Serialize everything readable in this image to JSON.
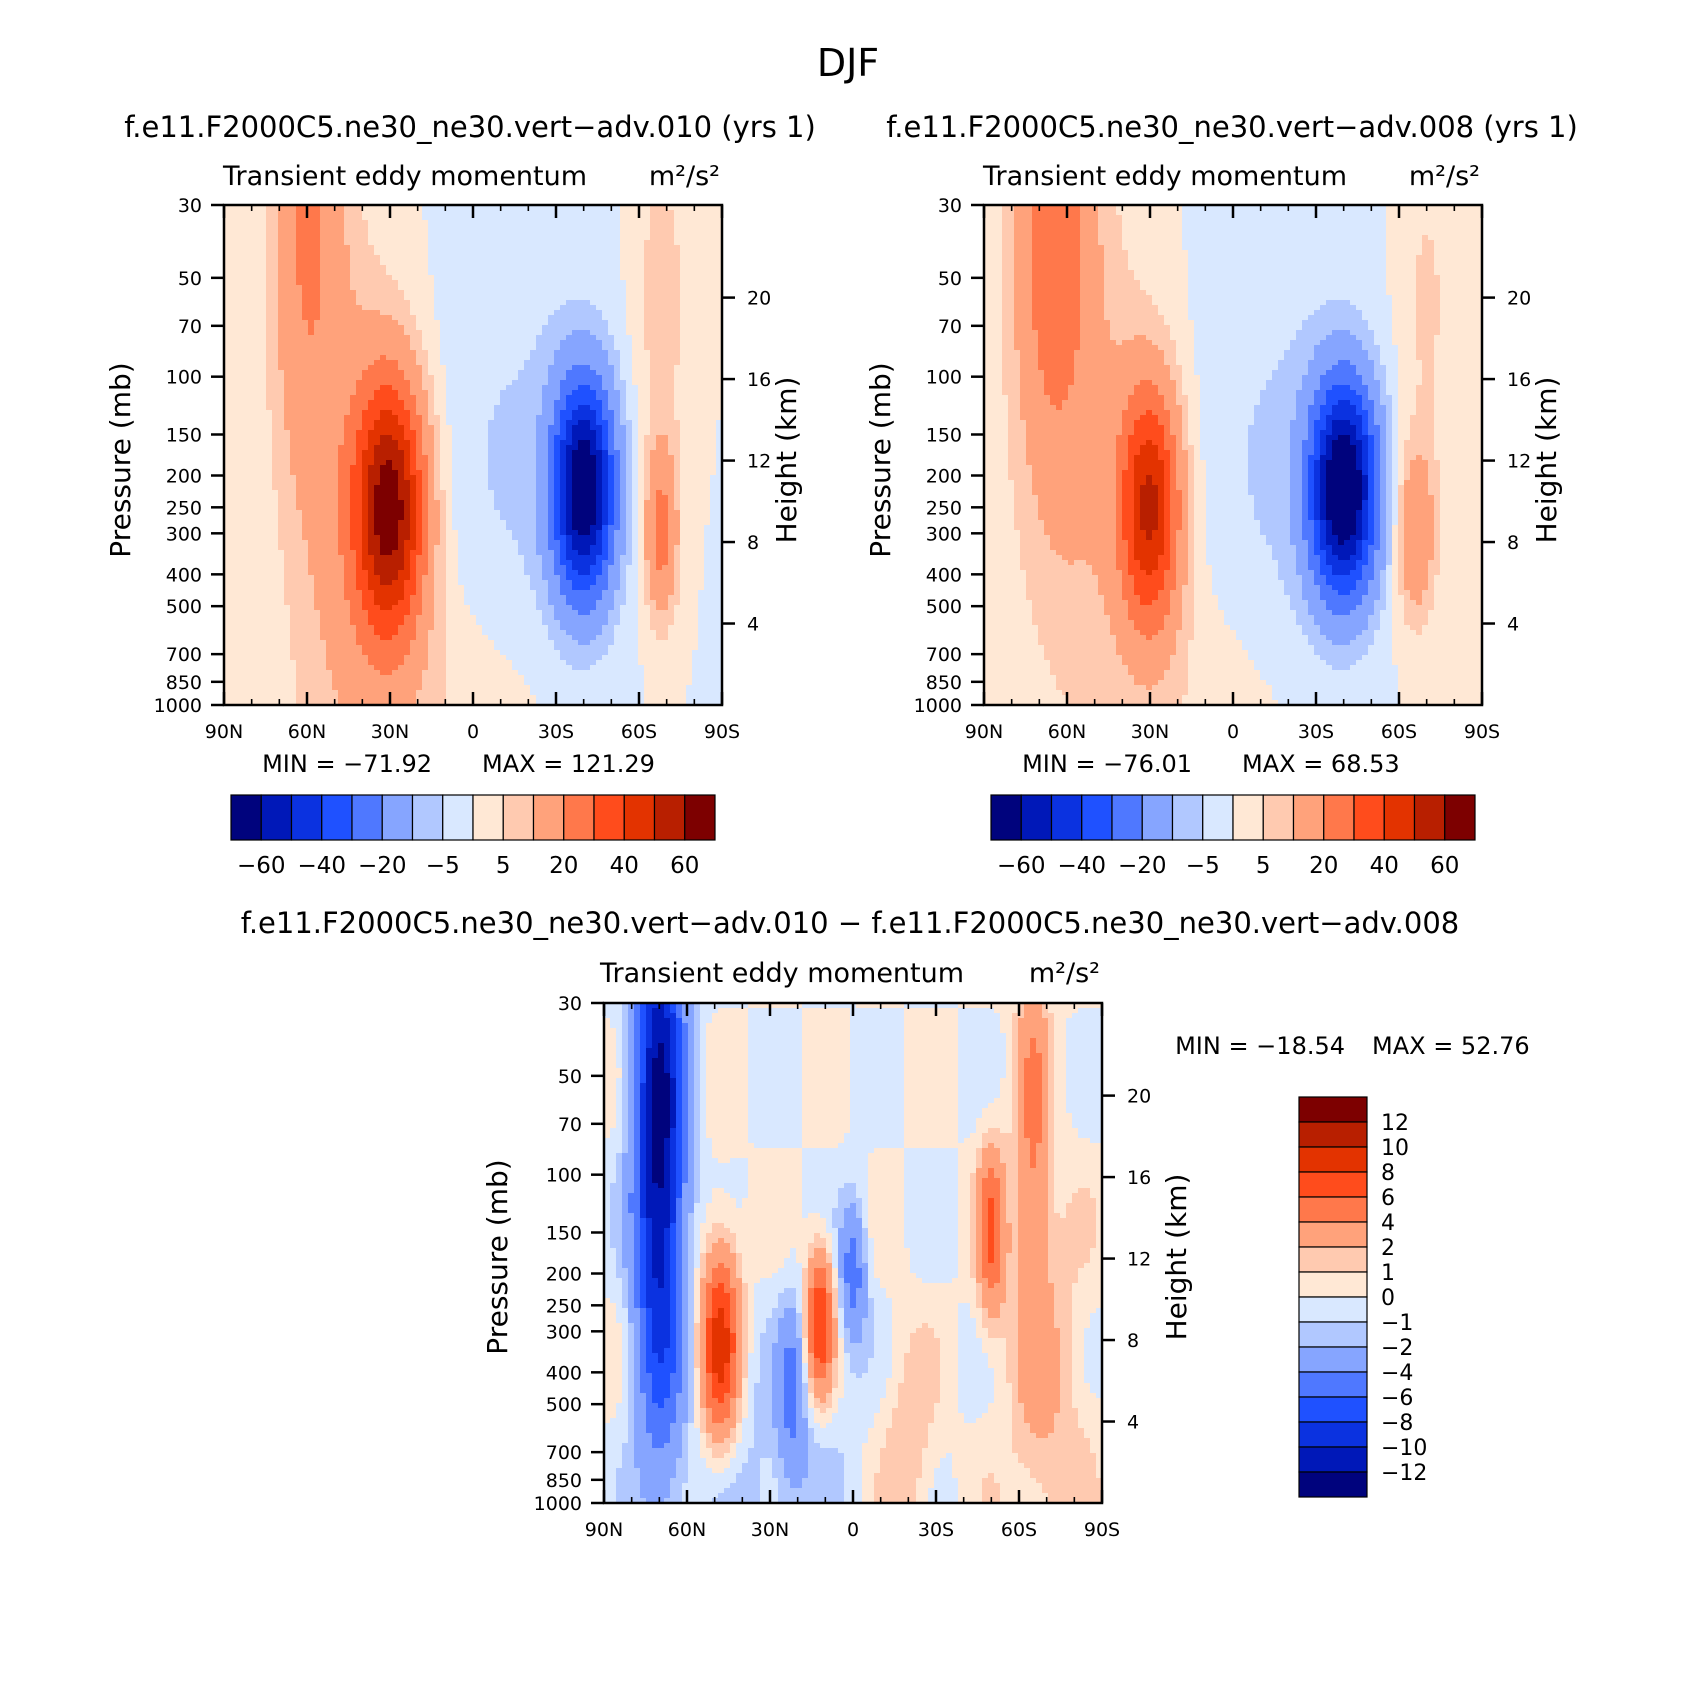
{
  "figure": {
    "title": "DJF",
    "panel_titles": [
      "f.e11.F2000C5.ne30_ne30.vert−adv.010 (yrs 1)",
      "f.e11.F2000C5.ne30_ne30.vert−adv.008 (yrs 1)",
      "f.e11.F2000C5.ne30_ne30.vert−adv.010 − f.e11.F2000C5.ne30_ne30.vert−adv.008"
    ],
    "subtitle_left": "Transient eddy momentum",
    "subtitle_units": "m²/s²"
  },
  "chart_data": [
    {
      "type": "heatmap",
      "title": "f.e11.F2000C5.ne30_ne30.vert−adv.010 (yrs 1)",
      "subtitle": "Transient eddy momentum",
      "units": "m²/s²",
      "xlabel": "",
      "ylabel": "Pressure (mb)",
      "ylabel_right": "Height (km)",
      "x_ticks": [
        "90N",
        "60N",
        "30N",
        "0",
        "30S",
        "60S",
        "90S"
      ],
      "y_ticks": [
        30,
        50,
        70,
        100,
        150,
        200,
        250,
        300,
        400,
        500,
        700,
        850,
        1000
      ],
      "y_right_ticks": [
        20,
        16,
        12,
        8,
        4
      ],
      "y_scale": "log",
      "ylim": [
        1000,
        30
      ],
      "xlim": [
        "90N",
        "90S"
      ],
      "min": -71.92,
      "max": 121.29,
      "min_label": "MIN = −71.92",
      "max_label": "MAX = 121.29",
      "features": [
        {
          "lat": 30,
          "p": 250,
          "value": 60
        },
        {
          "lat": -40,
          "p": 220,
          "value": -68
        },
        {
          "lat": -68,
          "p": 300,
          "value": 22
        },
        {
          "lat": 60,
          "p": 30,
          "value": 20
        }
      ],
      "colorbar": {
        "orientation": "horizontal",
        "labels": [
          "−60",
          "−40",
          "−20",
          "−5",
          "5",
          "20",
          "40",
          "60"
        ],
        "colors": [
          "#00037d",
          "#0018b8",
          "#0b32e0",
          "#1f51ff",
          "#4f78ff",
          "#86a5ff",
          "#b1c8ff",
          "#d9e8ff",
          "#ffe8d5",
          "#ffcab0",
          "#ffa27b",
          "#ff784b",
          "#ff4c1c",
          "#e33300",
          "#b81f00",
          "#7d0000"
        ]
      }
    },
    {
      "type": "heatmap",
      "title": "f.e11.F2000C5.ne30_ne30.vert−adv.008 (yrs 1)",
      "subtitle": "Transient eddy momentum",
      "units": "m²/s²",
      "xlabel": "",
      "ylabel": "Pressure (mb)",
      "ylabel_right": "Height (km)",
      "x_ticks": [
        "90N",
        "60N",
        "30N",
        "0",
        "30S",
        "60S",
        "90S"
      ],
      "y_ticks": [
        30,
        50,
        70,
        100,
        150,
        200,
        250,
        300,
        400,
        500,
        700,
        850,
        1000
      ],
      "y_right_ticks": [
        20,
        16,
        12,
        8,
        4
      ],
      "y_scale": "log",
      "ylim": [
        1000,
        30
      ],
      "xlim": [
        "90N",
        "90S"
      ],
      "min": -76.01,
      "max": 68.53,
      "min_label": "MIN = −76.01",
      "max_label": "MAX =  68.53",
      "features": [
        {
          "lat": 30,
          "p": 250,
          "value": 45
        },
        {
          "lat": -40,
          "p": 220,
          "value": -70
        },
        {
          "lat": -66,
          "p": 300,
          "value": 20
        },
        {
          "lat": 65,
          "p": 30,
          "value": 25
        }
      ],
      "colorbar": {
        "orientation": "horizontal",
        "labels": [
          "−60",
          "−40",
          "−20",
          "−5",
          "5",
          "20",
          "40",
          "60"
        ],
        "colors": [
          "#00037d",
          "#0018b8",
          "#0b32e0",
          "#1f51ff",
          "#4f78ff",
          "#86a5ff",
          "#b1c8ff",
          "#d9e8ff",
          "#ffe8d5",
          "#ffcab0",
          "#ffa27b",
          "#ff784b",
          "#ff4c1c",
          "#e33300",
          "#b81f00",
          "#7d0000"
        ]
      }
    },
    {
      "type": "heatmap",
      "title": "f.e11.F2000C5.ne30_ne30.vert−adv.010 − f.e11.F2000C5.ne30_ne30.vert−adv.008",
      "subtitle": "Transient eddy momentum",
      "units": "m²/s²",
      "xlabel": "",
      "ylabel": "Pressure (mb)",
      "ylabel_right": "Height (km)",
      "x_ticks": [
        "90N",
        "60N",
        "30N",
        "0",
        "30S",
        "60S",
        "90S"
      ],
      "y_ticks": [
        30,
        50,
        70,
        100,
        150,
        200,
        250,
        300,
        400,
        500,
        700,
        850,
        1000
      ],
      "y_right_ticks": [
        20,
        16,
        12,
        8,
        4
      ],
      "y_scale": "log",
      "ylim": [
        1000,
        30
      ],
      "xlim": [
        "90N",
        "90S"
      ],
      "min": -18.54,
      "max": 52.76,
      "min_label": "MIN = −18.54",
      "max_label": "MAX =  52.76",
      "features": [
        {
          "lat": 70,
          "p": 80,
          "value": -12
        },
        {
          "lat": 48,
          "p": 330,
          "value": 9
        },
        {
          "lat": 12,
          "p": 280,
          "value": 8
        },
        {
          "lat": -50,
          "p": 150,
          "value": 6
        },
        {
          "lat": -65,
          "p": 70,
          "value": 4
        }
      ],
      "colorbar": {
        "orientation": "vertical",
        "labels": [
          "12",
          "10",
          "8",
          "6",
          "4",
          "2",
          "1",
          "0",
          "−1",
          "−2",
          "−4",
          "−6",
          "−8",
          "−10",
          "−12"
        ],
        "colors": [
          "#7d0000",
          "#b81f00",
          "#e33300",
          "#ff4c1c",
          "#ff784b",
          "#ffa27b",
          "#ffcab0",
          "#ffe8d5",
          "#d9e8ff",
          "#b1c8ff",
          "#86a5ff",
          "#4f78ff",
          "#1f51ff",
          "#0b32e0",
          "#0018b8",
          "#00037d"
        ]
      }
    }
  ]
}
